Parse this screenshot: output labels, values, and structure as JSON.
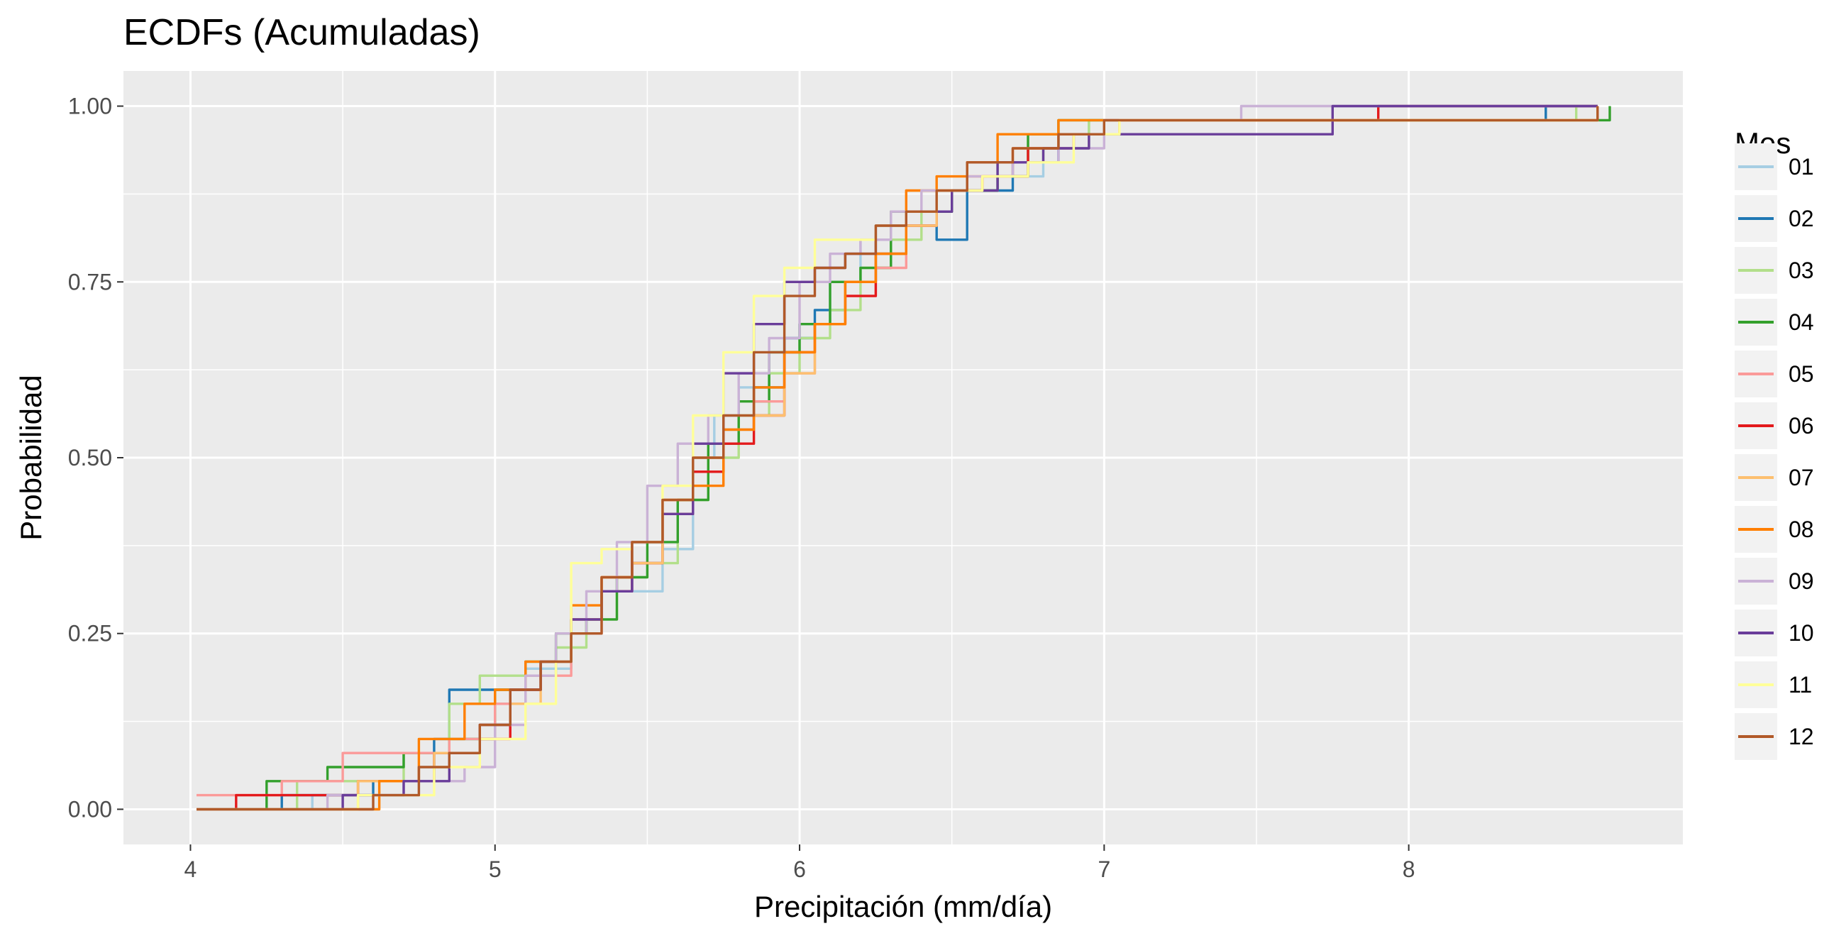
{
  "chart_data": {
    "type": "line",
    "title": "ECDFs (Acumuladas)",
    "xlabel": "Precipitación (mm/día)",
    "ylabel": "Probabilidad",
    "xlim": [
      3.78,
      8.9
    ],
    "ylim": [
      -0.05,
      1.05
    ],
    "x_ticks": [
      4,
      5,
      6,
      7,
      8
    ],
    "x_tick_labels": [
      "4",
      "5",
      "6",
      "7",
      "8"
    ],
    "y_ticks": [
      0,
      0.25,
      0.5,
      0.75,
      1.0
    ],
    "y_tick_labels": [
      "0.00",
      "0.25",
      "0.50",
      "0.75",
      "1.00"
    ],
    "grid": true,
    "legend": {
      "title": "Mes",
      "position": "right"
    },
    "series": [
      {
        "name": "01",
        "color": "#a6cee3",
        "x": [
          4.02,
          4.4,
          4.75,
          4.85,
          5.0,
          5.1,
          5.25,
          5.35,
          5.45,
          5.55,
          5.65,
          5.72,
          5.8,
          5.9,
          6.0,
          6.1,
          6.2,
          6.25,
          6.35,
          6.5,
          6.65,
          6.8,
          6.95,
          7.1,
          7.6,
          8.05,
          8.4,
          8.62
        ],
        "y": [
          0.0,
          0.02,
          0.06,
          0.1,
          0.15,
          0.2,
          0.27,
          0.31,
          0.31,
          0.37,
          0.5,
          0.56,
          0.6,
          0.65,
          0.69,
          0.75,
          0.81,
          0.83,
          0.85,
          0.88,
          0.9,
          0.94,
          0.98,
          0.98,
          0.98,
          0.98,
          0.98,
          1.0
        ]
      },
      {
        "name": "02",
        "color": "#1f78b4",
        "x": [
          4.02,
          4.3,
          4.6,
          4.8,
          4.85,
          5.0,
          5.15,
          5.25,
          5.35,
          5.45,
          5.55,
          5.65,
          5.75,
          5.85,
          5.95,
          6.05,
          6.15,
          6.25,
          6.35,
          6.45,
          6.55,
          6.7,
          6.85,
          7.0,
          8.0,
          8.45,
          8.62
        ],
        "y": [
          0.0,
          0.02,
          0.04,
          0.1,
          0.17,
          0.17,
          0.21,
          0.27,
          0.31,
          0.35,
          0.42,
          0.48,
          0.54,
          0.6,
          0.67,
          0.71,
          0.75,
          0.79,
          0.83,
          0.81,
          0.88,
          0.92,
          0.96,
          0.98,
          0.98,
          1.0,
          1.0
        ]
      },
      {
        "name": "03",
        "color": "#b2df8a",
        "x": [
          4.02,
          4.35,
          4.7,
          4.85,
          4.95,
          5.1,
          5.2,
          5.3,
          5.4,
          5.5,
          5.6,
          5.7,
          5.8,
          5.9,
          6.0,
          6.1,
          6.2,
          6.3,
          6.4,
          6.5,
          6.65,
          6.8,
          6.95,
          7.2,
          8.1,
          8.55,
          8.62
        ],
        "y": [
          0.0,
          0.04,
          0.08,
          0.15,
          0.19,
          0.19,
          0.23,
          0.27,
          0.33,
          0.35,
          0.44,
          0.5,
          0.56,
          0.62,
          0.67,
          0.71,
          0.77,
          0.81,
          0.85,
          0.88,
          0.92,
          0.94,
          0.98,
          0.98,
          0.98,
          1.0,
          1.0
        ]
      },
      {
        "name": "04",
        "color": "#33a02c",
        "x": [
          4.02,
          4.25,
          4.45,
          4.7,
          4.85,
          5.0,
          5.1,
          5.2,
          5.3,
          5.4,
          5.5,
          5.6,
          5.7,
          5.8,
          5.9,
          6.0,
          6.1,
          6.2,
          6.3,
          6.4,
          6.5,
          6.65,
          6.75,
          6.85,
          7.0,
          8.3,
          8.55,
          8.66
        ],
        "y": [
          0.0,
          0.04,
          0.06,
          0.08,
          0.1,
          0.17,
          0.21,
          0.25,
          0.27,
          0.33,
          0.38,
          0.44,
          0.52,
          0.58,
          0.65,
          0.69,
          0.75,
          0.77,
          0.85,
          0.85,
          0.88,
          0.9,
          0.96,
          0.98,
          0.98,
          0.98,
          0.98,
          1.0
        ]
      },
      {
        "name": "05",
        "color": "#fb9a99",
        "x": [
          4.02,
          4.3,
          4.5,
          4.75,
          4.85,
          5.0,
          5.1,
          5.25,
          5.35,
          5.45,
          5.55,
          5.65,
          5.75,
          5.85,
          5.95,
          6.05,
          6.15,
          6.25,
          6.35,
          6.45,
          6.55,
          6.7,
          6.85,
          7.0,
          8.0,
          8.5,
          8.62
        ],
        "y": [
          0.02,
          0.04,
          0.08,
          0.08,
          0.1,
          0.15,
          0.19,
          0.25,
          0.31,
          0.35,
          0.42,
          0.48,
          0.54,
          0.58,
          0.62,
          0.69,
          0.73,
          0.77,
          0.83,
          0.88,
          0.9,
          0.94,
          0.96,
          0.98,
          0.98,
          0.98,
          1.0
        ]
      },
      {
        "name": "06",
        "color": "#e31a1c",
        "x": [
          4.02,
          4.15,
          4.55,
          4.8,
          4.95,
          5.05,
          5.15,
          5.25,
          5.35,
          5.45,
          5.55,
          5.65,
          5.75,
          5.85,
          5.95,
          6.05,
          6.15,
          6.25,
          6.35,
          6.45,
          6.6,
          6.75,
          6.9,
          7.05,
          7.9,
          8.62
        ],
        "y": [
          0.0,
          0.02,
          0.04,
          0.08,
          0.1,
          0.17,
          0.21,
          0.27,
          0.31,
          0.35,
          0.42,
          0.48,
          0.52,
          0.56,
          0.65,
          0.69,
          0.73,
          0.79,
          0.83,
          0.88,
          0.9,
          0.94,
          0.96,
          0.98,
          1.0,
          1.0
        ]
      },
      {
        "name": "07",
        "color": "#fdbf6f",
        "x": [
          4.02,
          4.55,
          4.8,
          4.95,
          5.05,
          5.15,
          5.25,
          5.35,
          5.45,
          5.55,
          5.65,
          5.75,
          5.85,
          5.95,
          6.05,
          6.15,
          6.25,
          6.35,
          6.45,
          6.55,
          6.7,
          6.85,
          7.0,
          8.05,
          8.62
        ],
        "y": [
          0.0,
          0.04,
          0.08,
          0.12,
          0.15,
          0.21,
          0.27,
          0.33,
          0.35,
          0.42,
          0.5,
          0.54,
          0.56,
          0.62,
          0.69,
          0.75,
          0.79,
          0.83,
          0.88,
          0.9,
          0.94,
          0.96,
          0.98,
          0.98,
          1.0
        ]
      },
      {
        "name": "08",
        "color": "#ff7f00",
        "x": [
          4.02,
          4.62,
          4.75,
          4.9,
          5.0,
          5.1,
          5.25,
          5.35,
          5.45,
          5.55,
          5.65,
          5.75,
          5.85,
          5.95,
          6.05,
          6.15,
          6.25,
          6.35,
          6.45,
          6.55,
          6.65,
          6.75,
          6.85,
          7.0,
          8.3,
          8.62
        ],
        "y": [
          0.0,
          0.04,
          0.1,
          0.15,
          0.17,
          0.21,
          0.29,
          0.33,
          0.38,
          0.44,
          0.46,
          0.54,
          0.6,
          0.65,
          0.69,
          0.75,
          0.79,
          0.88,
          0.9,
          0.92,
          0.96,
          0.96,
          0.98,
          0.98,
          0.98,
          1.0
        ]
      },
      {
        "name": "09",
        "color": "#cab2d6",
        "x": [
          4.02,
          4.45,
          4.7,
          4.9,
          5.0,
          5.1,
          5.2,
          5.3,
          5.4,
          5.5,
          5.6,
          5.7,
          5.8,
          5.9,
          6.0,
          6.1,
          6.2,
          6.3,
          6.4,
          6.55,
          6.7,
          6.85,
          7.0,
          7.45,
          8.15,
          8.62
        ],
        "y": [
          0.0,
          0.02,
          0.04,
          0.06,
          0.12,
          0.19,
          0.25,
          0.31,
          0.38,
          0.46,
          0.52,
          0.56,
          0.62,
          0.67,
          0.75,
          0.79,
          0.81,
          0.85,
          0.88,
          0.9,
          0.92,
          0.94,
          0.98,
          1.0,
          1.0,
          1.0
        ]
      },
      {
        "name": "10",
        "color": "#6a3d9a",
        "x": [
          4.02,
          4.5,
          4.7,
          4.85,
          4.95,
          5.05,
          5.15,
          5.25,
          5.35,
          5.45,
          5.55,
          5.65,
          5.75,
          5.85,
          5.95,
          6.05,
          6.15,
          6.25,
          6.35,
          6.5,
          6.65,
          6.8,
          6.95,
          7.55,
          7.75,
          8.62
        ],
        "y": [
          0.0,
          0.02,
          0.04,
          0.08,
          0.12,
          0.17,
          0.21,
          0.27,
          0.31,
          0.38,
          0.42,
          0.52,
          0.62,
          0.69,
          0.75,
          0.77,
          0.79,
          0.83,
          0.85,
          0.88,
          0.92,
          0.94,
          0.96,
          0.96,
          1.0,
          1.0
        ]
      },
      {
        "name": "11",
        "color": "#ffff99",
        "x": [
          4.02,
          4.55,
          4.8,
          4.95,
          5.1,
          5.2,
          5.25,
          5.35,
          5.45,
          5.55,
          5.65,
          5.75,
          5.85,
          5.95,
          6.05,
          6.15,
          6.25,
          6.35,
          6.45,
          6.6,
          6.75,
          6.9,
          7.05,
          8.2,
          8.62
        ],
        "y": [
          0.0,
          0.02,
          0.06,
          0.1,
          0.15,
          0.21,
          0.35,
          0.37,
          0.38,
          0.46,
          0.56,
          0.65,
          0.73,
          0.77,
          0.81,
          0.81,
          0.83,
          0.85,
          0.88,
          0.9,
          0.92,
          0.96,
          0.98,
          0.98,
          1.0
        ]
      },
      {
        "name": "12",
        "color": "#b15928",
        "x": [
          4.02,
          4.6,
          4.75,
          4.85,
          4.95,
          5.05,
          5.15,
          5.25,
          5.35,
          5.45,
          5.55,
          5.65,
          5.75,
          5.85,
          5.95,
          6.05,
          6.15,
          6.25,
          6.35,
          6.45,
          6.55,
          6.7,
          6.85,
          7.0,
          8.2,
          8.62
        ],
        "y": [
          0.0,
          0.02,
          0.06,
          0.08,
          0.12,
          0.17,
          0.21,
          0.25,
          0.33,
          0.38,
          0.44,
          0.5,
          0.56,
          0.65,
          0.73,
          0.77,
          0.79,
          0.83,
          0.85,
          0.88,
          0.92,
          0.94,
          0.96,
          0.98,
          0.98,
          1.0
        ]
      }
    ]
  }
}
